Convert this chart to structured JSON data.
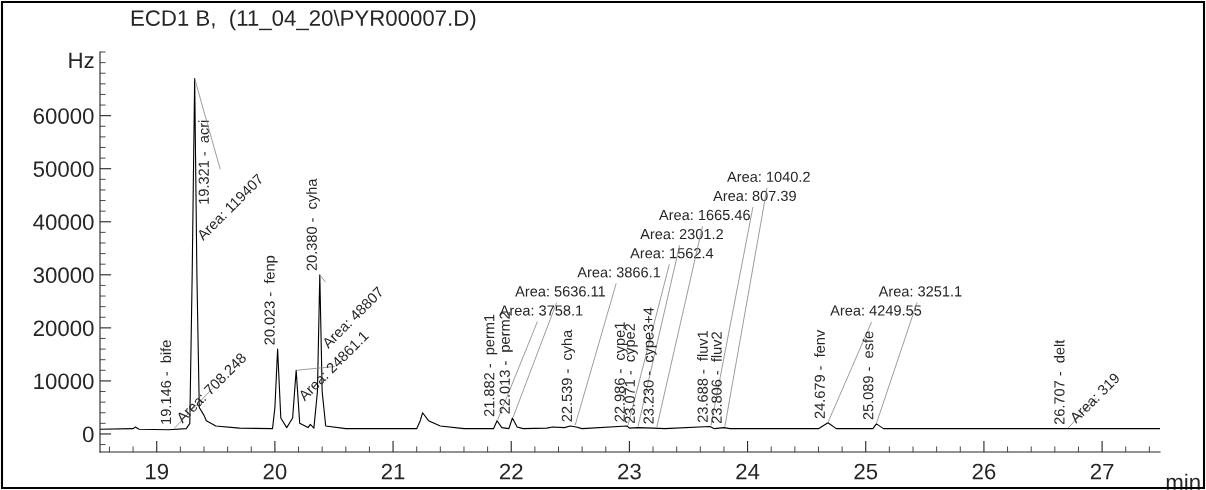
{
  "chart_data": {
    "type": "line",
    "title": "ECD1 B,  (11_04_20\\PYR00007.D)",
    "xlabel": "min",
    "ylabel": "Hz",
    "xlim": [
      18.52,
      27.49
    ],
    "ylim": [
      -3400,
      72000
    ],
    "xticks": [
      19,
      20,
      21,
      22,
      23,
      24,
      25,
      26,
      27
    ],
    "yticks": [
      0,
      10000,
      20000,
      30000,
      40000,
      50000,
      60000
    ],
    "grid": false,
    "legend": false,
    "marker": "none",
    "line_style": "solid",
    "series": [
      {
        "color": "#000000",
        "x": [
          18.52,
          18.8,
          18.82,
          18.85,
          19.1,
          19.25,
          19.28,
          19.3,
          19.321,
          19.34,
          19.36,
          19.4,
          19.42,
          19.5,
          19.7,
          19.98,
          20.0,
          20.023,
          20.05,
          20.1,
          20.15,
          20.18,
          20.21,
          20.28,
          20.3,
          20.33,
          20.36,
          20.38,
          20.4,
          20.43,
          20.6,
          21.2,
          21.23,
          21.25,
          21.3,
          21.4,
          21.6,
          21.85,
          21.88,
          21.92,
          21.98,
          22.01,
          22.05,
          22.1,
          22.3,
          22.35,
          22.45,
          22.5,
          22.55,
          22.6,
          22.98,
          23.0,
          23.07,
          23.2,
          23.3,
          23.68,
          23.72,
          23.8,
          23.85,
          24.6,
          24.68,
          24.75,
          25.06,
          25.09,
          25.15,
          27.49
        ],
        "values": [
          900,
          1000,
          1300,
          900,
          800,
          1000,
          2000,
          30000,
          67000,
          30000,
          5000,
          3500,
          2500,
          1500,
          1100,
          1000,
          5000,
          16000,
          3000,
          1200,
          3000,
          12000,
          2000,
          1200,
          1800,
          1100,
          8000,
          30000,
          8000,
          1500,
          1000,
          1000,
          2500,
          4000,
          2500,
          1500,
          1000,
          1000,
          2500,
          1200,
          1000,
          3000,
          1300,
          1000,
          1100,
          1300,
          1200,
          1500,
          1300,
          1000,
          1500,
          1100,
          1200,
          1100,
          1000,
          1400,
          1000,
          1200,
          1000,
          1000,
          2100,
          1000,
          1000,
          1900,
          1000,
          1000
        ]
      }
    ],
    "annotations": [
      {
        "text": "19.146 -  bife",
        "x": 19.146,
        "y": 1000
      },
      {
        "text": "Area: 708.248",
        "x": 19.146,
        "y": 1000
      },
      {
        "text": "19.321 -  acri",
        "x": 19.321,
        "y": 67000
      },
      {
        "text": "Area: 119407",
        "x": 19.321,
        "y": 67000
      },
      {
        "text": "20.023 -  fenp",
        "x": 20.023,
        "y": 16000
      },
      {
        "text": "Area: 24861.1",
        "x": 20.18,
        "y": 12000
      },
      {
        "text": "20.380 -  cyha",
        "x": 20.38,
        "y": 30000
      },
      {
        "text": "Area: 48807",
        "x": 20.38,
        "y": 30000
      },
      {
        "text": "21.882 -  perm1",
        "x": 21.882,
        "y": 2500
      },
      {
        "text": "Area: 3758.1",
        "x": 21.882,
        "y": 2500
      },
      {
        "text": "22.013 -  perm2",
        "x": 22.013,
        "y": 3000
      },
      {
        "text": "Area: 5636.11",
        "x": 22.013,
        "y": 3000
      },
      {
        "text": "22.539 -  cyha",
        "x": 22.539,
        "y": 1500
      },
      {
        "text": "Area: 3866.1",
        "x": 22.539,
        "y": 1500
      },
      {
        "text": "22.986 -  cype1",
        "x": 22.986,
        "y": 1500
      },
      {
        "text": "Area: 1562.4",
        "x": 22.986,
        "y": 1500
      },
      {
        "text": "23.071 -  cype2",
        "x": 23.071,
        "y": 1200
      },
      {
        "text": "Area: 2301.2",
        "x": 23.071,
        "y": 1200
      },
      {
        "text": "23.230 -  cype3+4",
        "x": 23.23,
        "y": 1100
      },
      {
        "text": "Area: 1665.46",
        "x": 23.23,
        "y": 1100
      },
      {
        "text": "23.688 -  fluv1",
        "x": 23.688,
        "y": 1400
      },
      {
        "text": "Area: 807.39",
        "x": 23.688,
        "y": 1400
      },
      {
        "text": "23.806 -  fluv2",
        "x": 23.806,
        "y": 1200
      },
      {
        "text": "Area: 1040.2",
        "x": 23.806,
        "y": 1200
      },
      {
        "text": "24.679 -  fenv",
        "x": 24.679,
        "y": 2100
      },
      {
        "text": "Area: 4249.55",
        "x": 24.679,
        "y": 2100
      },
      {
        "text": "25.089 -  esfe",
        "x": 25.089,
        "y": 1900
      },
      {
        "text": "Area: 3251.1",
        "x": 25.089,
        "y": 1900
      },
      {
        "text": "26.707 -  delt",
        "x": 26.707,
        "y": 1000
      },
      {
        "text": "Area: 319",
        "x": 26.707,
        "y": 1000
      }
    ]
  }
}
